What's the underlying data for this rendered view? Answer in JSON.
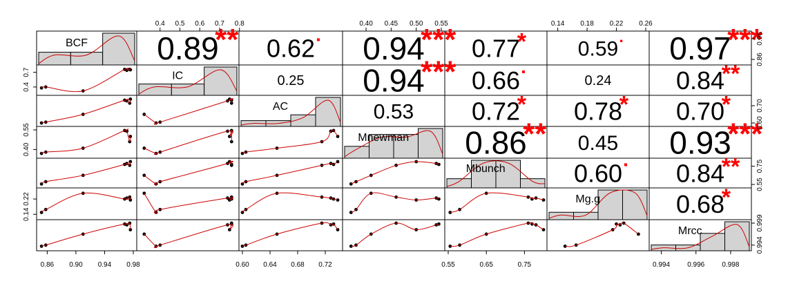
{
  "chart_data": {
    "type": "scatter",
    "variables": [
      "BCF",
      "IC",
      "AC",
      "Mnewman",
      "Mbunch",
      "Mg.g",
      "Mrcc"
    ],
    "ranges": [
      [
        0.85,
        0.98
      ],
      [
        0.3,
        0.78
      ],
      [
        0.6,
        0.74
      ],
      [
        0.36,
        0.55
      ],
      [
        0.55,
        0.8
      ],
      [
        0.13,
        0.26
      ],
      [
        0.9935,
        0.999
      ]
    ],
    "axis_ticks": {
      "top": [
        {
          "var": 1,
          "values": [
            0.4,
            0.5,
            0.6,
            0.7,
            0.8
          ],
          "labels": [
            "0.4",
            "0.5",
            "0.6",
            "0.7",
            "0.8"
          ]
        },
        {
          "var": 3,
          "values": [
            0.4,
            0.45,
            0.5,
            0.55
          ],
          "labels": [
            "0.40",
            "0.45",
            "0.50",
            "0.55"
          ]
        },
        {
          "var": 5,
          "values": [
            0.14,
            0.18,
            0.22,
            0.26
          ],
          "labels": [
            "0.14",
            "0.18",
            "0.22",
            "0.26"
          ]
        }
      ],
      "bottom": [
        {
          "var": 0,
          "values": [
            0.86,
            0.9,
            0.94,
            0.98
          ],
          "labels": [
            "0.86",
            "0.90",
            "0.94",
            "0.98"
          ]
        },
        {
          "var": 2,
          "values": [
            0.6,
            0.64,
            0.68,
            0.72
          ],
          "labels": [
            "0.60",
            "0.64",
            "0.68",
            "0.72"
          ]
        },
        {
          "var": 4,
          "values": [
            0.55,
            0.65,
            0.75
          ],
          "labels": [
            "0.55",
            "0.65",
            "0.75"
          ]
        },
        {
          "var": 6,
          "values": [
            0.994,
            0.996,
            0.998
          ],
          "labels": [
            "0.994",
            "0.996",
            "0.998"
          ]
        }
      ],
      "left": [
        {
          "var": 1,
          "values": [
            0.4,
            0.7
          ],
          "labels": [
            "0.4",
            "0.7"
          ]
        },
        {
          "var": 3,
          "values": [
            0.4,
            0.55
          ],
          "labels": [
            "0.40",
            "0.55"
          ]
        },
        {
          "var": 5,
          "values": [
            0.14,
            0.22
          ],
          "labels": [
            "0.14",
            "0.22"
          ]
        }
      ],
      "right": [
        {
          "var": 0,
          "values": [
            0.86,
            0.96
          ],
          "labels": [
            "0.86",
            "0.96"
          ]
        },
        {
          "var": 2,
          "values": [
            0.6,
            0.7
          ],
          "labels": [
            "0.60",
            "0.70"
          ]
        },
        {
          "var": 4,
          "values": [
            0.55,
            0.75
          ],
          "labels": [
            "0.55",
            "0.75"
          ]
        },
        {
          "var": 6,
          "values": [
            0.994,
            0.999
          ],
          "labels": [
            "0.994",
            "0.999"
          ]
        }
      ]
    },
    "observations": [
      {
        "BCF": 0.852,
        "IC": 0.38,
        "AC": 0.6,
        "Mnewman": 0.37,
        "Mbunch": 0.555,
        "Mg.g": 0.15,
        "Mrcc": 0.99375
      },
      {
        "BCF": 0.858,
        "IC": 0.4,
        "AC": 0.605,
        "Mnewman": 0.38,
        "Mbunch": 0.58,
        "Mg.g": 0.165,
        "Mrcc": 0.994
      },
      {
        "BCF": 0.91,
        "IC": 0.32,
        "AC": 0.65,
        "Mnewman": 0.41,
        "Mbunch": 0.65,
        "Mg.g": 0.25,
        "Mrcc": 0.9965
      },
      {
        "BCF": 0.968,
        "IC": 0.76,
        "AC": 0.732,
        "Mnewman": 0.545,
        "Mbunch": 0.77,
        "Mg.g": 0.22,
        "Mrcc": 0.9988
      },
      {
        "BCF": 0.971,
        "IC": 0.74,
        "AC": 0.728,
        "Mnewman": 0.54,
        "Mbunch": 0.78,
        "Mg.g": 0.225,
        "Mrcc": 0.9986
      },
      {
        "BCF": 0.975,
        "IC": 0.76,
        "AC": 0.715,
        "Mnewman": 0.46,
        "Mbunch": 0.76,
        "Mg.g": 0.23,
        "Mrcc": 0.999
      },
      {
        "BCF": 0.976,
        "IC": 0.75,
        "AC": 0.738,
        "Mnewman": 0.5,
        "Mbunch": 0.8,
        "Mg.g": 0.215,
        "Mrcc": 0.9975
      }
    ],
    "histograms": [
      {
        "var": "BCF",
        "counts": [
          2,
          2,
          5
        ]
      },
      {
        "var": "IC",
        "counts": [
          2,
          2,
          5
        ]
      },
      {
        "var": "AC",
        "counts": [
          1,
          1,
          2,
          5
        ]
      },
      {
        "var": "Mnewman",
        "counts": [
          2,
          4,
          4,
          5
        ]
      },
      {
        "var": "Mbunch",
        "counts": [
          1,
          3,
          3,
          1
        ]
      },
      {
        "var": "Mg.g",
        "counts": [
          1,
          1,
          4,
          4
        ]
      },
      {
        "var": "Mrcc",
        "counts": [
          1,
          1,
          3,
          5
        ]
      }
    ],
    "correlations": [
      {
        "row": 0,
        "col": 1,
        "value": "0.89",
        "stars": "**",
        "size": "large"
      },
      {
        "row": 0,
        "col": 2,
        "value": "0.62",
        "stars": ".",
        "size": "medium"
      },
      {
        "row": 0,
        "col": 3,
        "value": "0.94",
        "stars": "***",
        "size": "large"
      },
      {
        "row": 0,
        "col": 4,
        "value": "0.77",
        "stars": "*",
        "size": "medium"
      },
      {
        "row": 0,
        "col": 5,
        "value": "0.59",
        "stars": ".",
        "size": "small"
      },
      {
        "row": 0,
        "col": 6,
        "value": "0.97",
        "stars": "***",
        "size": "large"
      },
      {
        "row": 1,
        "col": 2,
        "value": "0.25",
        "stars": "",
        "size": "tiny"
      },
      {
        "row": 1,
        "col": 3,
        "value": "0.94",
        "stars": "***",
        "size": "large"
      },
      {
        "row": 1,
        "col": 4,
        "value": "0.66",
        "stars": ".",
        "size": "medium"
      },
      {
        "row": 1,
        "col": 5,
        "value": "0.24",
        "stars": "",
        "size": "tiny"
      },
      {
        "row": 1,
        "col": 6,
        "value": "0.84",
        "stars": "**",
        "size": "medium"
      },
      {
        "row": 2,
        "col": 3,
        "value": "0.53",
        "stars": "",
        "size": "small"
      },
      {
        "row": 2,
        "col": 4,
        "value": "0.72",
        "stars": "*",
        "size": "medium"
      },
      {
        "row": 2,
        "col": 5,
        "value": "0.78",
        "stars": "*",
        "size": "medium"
      },
      {
        "row": 2,
        "col": 6,
        "value": "0.70",
        "stars": "*",
        "size": "medium"
      },
      {
        "row": 3,
        "col": 4,
        "value": "0.86",
        "stars": "**",
        "size": "large"
      },
      {
        "row": 3,
        "col": 5,
        "value": "0.45",
        "stars": "",
        "size": "small"
      },
      {
        "row": 3,
        "col": 6,
        "value": "0.93",
        "stars": "***",
        "size": "large"
      },
      {
        "row": 4,
        "col": 5,
        "value": "0.60",
        "stars": ".",
        "size": "medium"
      },
      {
        "row": 4,
        "col": 6,
        "value": "0.84",
        "stars": "**",
        "size": "medium"
      },
      {
        "row": 5,
        "col": 6,
        "value": "0.68",
        "stars": "*",
        "size": "medium"
      }
    ],
    "colors": {
      "points": "#000000",
      "smooth": "#cc0000",
      "density": "#cc0000",
      "hist_fill": "#d3d3d3",
      "stars": "#ff0000"
    },
    "title": "",
    "xlabel": "",
    "ylabel": ""
  }
}
